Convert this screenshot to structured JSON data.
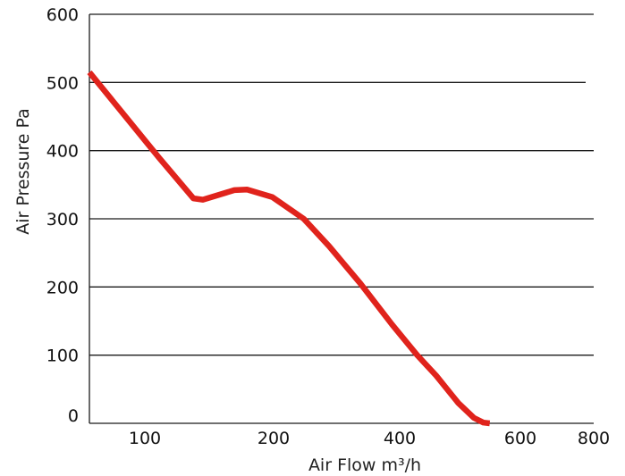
{
  "chart_data": {
    "type": "line",
    "title": "",
    "xlabel": "Air Flow m³/h",
    "ylabel": "Air Pressure Pa",
    "xlim": [
      0,
      800
    ],
    "ylim": [
      0,
      600
    ],
    "x_tick_labels": [
      "100",
      "200",
      "400",
      "600",
      "800"
    ],
    "y_ticks": [
      0,
      100,
      200,
      300,
      400,
      500,
      600
    ],
    "grid": "horizontal",
    "legend": "none",
    "series": [
      {
        "color": "#e0231c",
        "x": [
          0,
          110,
          165,
          180,
          230,
          250,
          290,
          340,
          380,
          430,
          480,
          520,
          550,
          585,
          610,
          625,
          635
        ],
        "y": [
          515,
          390,
          330,
          328,
          342,
          343,
          332,
          300,
          260,
          205,
          145,
          100,
          70,
          30,
          8,
          1,
          0
        ]
      }
    ]
  }
}
